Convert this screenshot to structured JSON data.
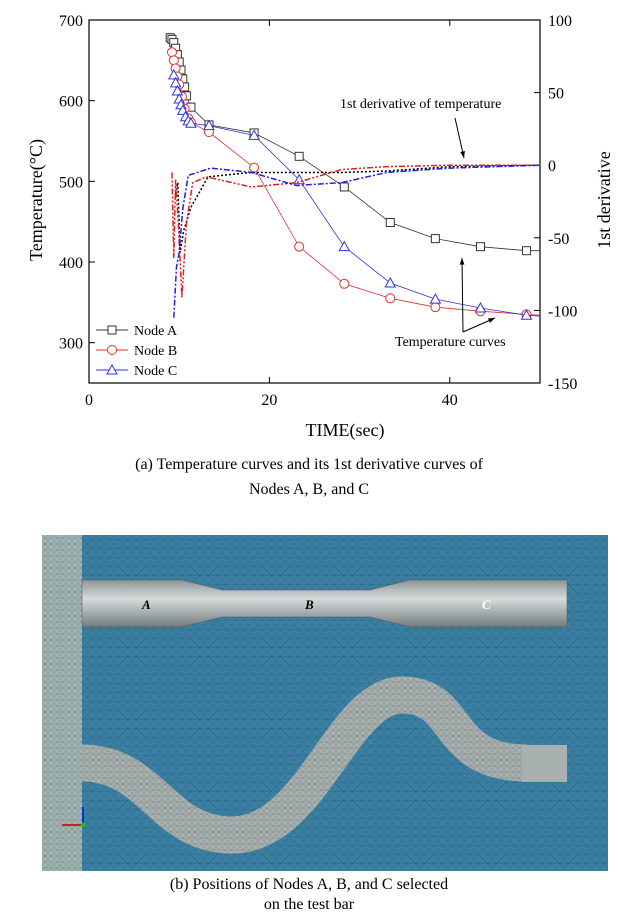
{
  "figure_a": {
    "caption_line1": "(a) Temperature curves and its 1st derivative curves of",
    "caption_line2": "Nodes A, B, and C",
    "annotations": {
      "derivative": "1st derivative of temperature",
      "temperature": "Temperature curves"
    }
  },
  "figure_b": {
    "caption_line1": "(b) Positions of Nodes A, B, and C selected",
    "caption_line2": "on the test bar",
    "node_labels": [
      "A",
      "B",
      "C"
    ],
    "colors": {
      "background": "#3b7fa3",
      "bar": "#a9b1b0"
    }
  },
  "chart_data": {
    "type": "line",
    "xlabel": "TIME(sec)",
    "ylabel": "Temperature(°C)",
    "y2label": "1st derivative",
    "xlim": [
      0,
      50
    ],
    "ylim": [
      250,
      700
    ],
    "y2lim": [
      -150,
      100
    ],
    "xticks": [
      0,
      20,
      40
    ],
    "yticks": [
      300,
      400,
      500,
      600,
      700
    ],
    "y2ticks": [
      -150,
      -100,
      -50,
      0,
      50,
      100
    ],
    "grid": false,
    "legend": "bottom-left",
    "series": [
      {
        "name": "Node A",
        "axis": "left",
        "color": "#333333",
        "marker": "square",
        "x": [
          9.0,
          9.2,
          9.4,
          9.6,
          9.8,
          10.0,
          10.2,
          10.4,
          10.6,
          10.8,
          11.3,
          13.3,
          18.3,
          23.3,
          28.3,
          33.4,
          38.4,
          43.4,
          48.5,
          50
        ],
        "y": [
          678,
          676,
          672,
          665,
          657,
          648,
          638,
          627,
          617,
          606,
          592,
          570,
          560,
          531,
          493,
          449,
          429,
          419,
          414,
          414
        ]
      },
      {
        "name": "Node B",
        "axis": "left",
        "color": "#e03030",
        "marker": "circle",
        "x": [
          9.2,
          9.4,
          9.6,
          9.8,
          10.0,
          10.3,
          10.6,
          11.0,
          11.3,
          13.3,
          18.3,
          23.3,
          28.3,
          33.4,
          38.4,
          43.4,
          48.5,
          50
        ],
        "y": [
          660,
          650,
          640,
          630,
          620,
          605,
          590,
          578,
          573,
          561,
          517,
          419,
          373,
          355,
          344,
          339,
          335,
          334
        ]
      },
      {
        "name": "Node C",
        "axis": "left",
        "color": "#3333dd",
        "marker": "triangle",
        "x": [
          9.4,
          9.6,
          9.8,
          10.0,
          10.2,
          10.4,
          10.7,
          11.0,
          11.3,
          13.3,
          18.3,
          23.3,
          28.3,
          33.4,
          38.4,
          43.4,
          48.5,
          50
        ],
        "y": [
          632,
          622,
          612,
          602,
          595,
          588,
          580,
          575,
          572,
          569,
          557,
          502,
          419,
          374,
          354,
          343,
          334,
          333
        ]
      },
      {
        "axis": "right",
        "color": "#000000",
        "dash": "dot",
        "x": [
          9.6,
          9.85,
          10.1,
          10.5,
          11.3,
          13.2,
          18,
          28,
          33,
          40,
          50
        ],
        "y": [
          -20,
          -12,
          -60,
          -45,
          -29,
          -8,
          -5,
          -5,
          -4,
          -1,
          0
        ]
      },
      {
        "axis": "right",
        "color": "#dd2020",
        "dash": "dashdotdot",
        "x": [
          9.2,
          9.4,
          9.6,
          9.9,
          10.3,
          10.8,
          11.5,
          13,
          18,
          23,
          28,
          33,
          40,
          50
        ],
        "y": [
          -5,
          -64,
          -10,
          -40,
          -91,
          -40,
          -12,
          -8,
          -15,
          -12,
          -3,
          -1,
          0,
          0
        ]
      },
      {
        "axis": "right",
        "color": "#2020dd",
        "dash": "dashdot",
        "x": [
          9.4,
          9.7,
          10.0,
          10.4,
          11.0,
          13.5,
          18,
          23,
          28,
          33,
          40,
          50
        ],
        "y": [
          -105,
          -70,
          -60,
          -30,
          -7,
          -2,
          -5,
          -14,
          -12,
          -5,
          -2,
          0
        ]
      }
    ]
  }
}
